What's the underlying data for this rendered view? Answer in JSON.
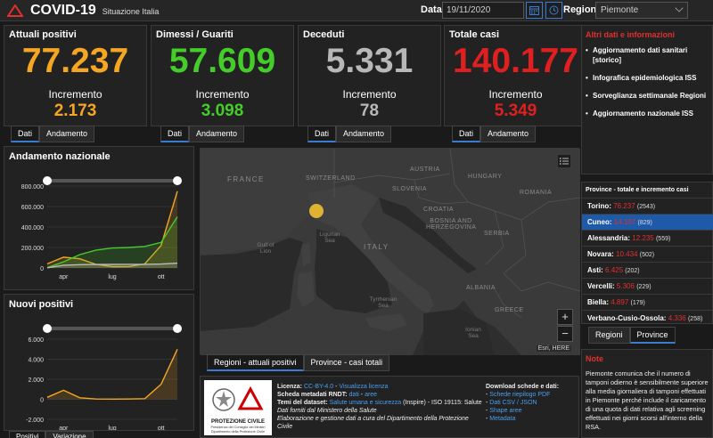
{
  "header": {
    "title": "COVID-19",
    "subtitle": "Situazione Italia",
    "date_label": "Data",
    "date_value": "19/11/2020",
    "region_label": "Regione",
    "region_value": "Piemonte"
  },
  "stats": [
    {
      "label": "Attuali positivi",
      "value": "77.237",
      "inc_label": "Incremento",
      "inc": "2.173",
      "color": "#f5a623"
    },
    {
      "label": "Dimessi / Guariti",
      "value": "57.609",
      "inc_label": "Incremento",
      "inc": "3.098",
      "color": "#44cc2a"
    },
    {
      "label": "Deceduti",
      "value": "5.331",
      "inc_label": "Incremento",
      "inc": "78",
      "color": "#b8b8b8"
    },
    {
      "label": "Totale casi",
      "value": "140.177",
      "inc_label": "Incremento",
      "inc": "5.349",
      "color": "#e02020"
    }
  ],
  "stat_tabs": {
    "dati": "Dati",
    "andamento": "Andamento"
  },
  "info": {
    "header": "Altri dati e informazioni",
    "items": [
      "Aggiornamento dati sanitari [storico]",
      "Infografica epidemiologica ISS",
      "Sorveglianza settimanale Regioni",
      "Aggiornamento nazionale ISS"
    ]
  },
  "provinces": {
    "header": "Province - totale e incremento casi",
    "rows": [
      {
        "name": "Torino:",
        "value": "76.237",
        "inc": "(2543)"
      },
      {
        "name": "Cuneo:",
        "value": "14.107",
        "inc": "(829)"
      },
      {
        "name": "Alessandria:",
        "value": "12.235",
        "inc": "(559)"
      },
      {
        "name": "Novara:",
        "value": "10.434",
        "inc": "(502)"
      },
      {
        "name": "Asti:",
        "value": "6.425",
        "inc": "(202)"
      },
      {
        "name": "Vercelli:",
        "value": "5.306",
        "inc": "(229)"
      },
      {
        "name": "Biella:",
        "value": "4.897",
        "inc": "(179)"
      },
      {
        "name": "Verbano-Cusio-Ossola:",
        "value": "4.336",
        "inc": "(258)"
      }
    ],
    "tab_regioni": "Regioni",
    "tab_province": "Province"
  },
  "note": {
    "header": "Note",
    "text": "Piemonte comunica che il numero di tamponi odierno è sensibilmente superiore alla media giornaliera di tamponi effettuati in Piemonte perché include il caricamento di una quota di dati relativa agli screening effettuati nei giorni scorsi all'interno della RSA."
  },
  "map": {
    "labels": {
      "france": "FRANCE",
      "austria": "AUSTRIA",
      "hungary": "HUNGARY",
      "switzerland": "SWITZERLAND",
      "slovenia": "SLOVENIA",
      "croatia": "CROATIA",
      "romania": "ROMANIA",
      "bosnia": "BOSNIA AND HERZEGOVINA",
      "serbia": "SERBIA",
      "italy": "ITALY",
      "albania": "ALBANIA",
      "greece": "GREECE",
      "ligurian": "Ligurian Sea",
      "lion": "Gulf of Lion",
      "tyrrhenian": "Tyrrhenian Sea",
      "ionian": "Ionian Sea"
    },
    "attribution": "Esri, HERE",
    "zoom_in": "+",
    "zoom_out": "−",
    "tab_regioni": "Regioni - attuali positivi",
    "tab_province": "Province - casi totali"
  },
  "footer": {
    "licenza_label": "Licenza:",
    "licenza_value": "CC-BY-4.0",
    "licenza_link": "Visualizza licenza",
    "rndt_label": "Scheda metadati RNDT:",
    "rndt_dati": "dati",
    "rndt_aree": "aree",
    "temi_label": "Temi del dataset:",
    "temi_value": "Salute umana e sicurezza",
    "temi_extra": "(Inspire) - ISO 19115: Salute",
    "fonte": "Dati forniti dal Ministero della Salute",
    "elab": "Elaborazione e gestione dati a cura del Dipartimento della Protezione Civile",
    "download_label": "Download schede e dati:",
    "downloads": [
      "Schede riepilogo PDF",
      "Dati CSV / JSON",
      "Shape aree",
      "Metadata"
    ],
    "pc_name": "PROTEZIONE CIVILE",
    "pc_sub": "Presidenza del Consiglio dei Ministri Dipartimento della Protezione Civile"
  },
  "charts": {
    "andamento": {
      "title": "Andamento nazionale",
      "y_ticks": [
        "800.000",
        "600.000",
        "400.000",
        "200.000",
        "0"
      ],
      "x_ticks": [
        "apr",
        "lug",
        "ott"
      ]
    },
    "nuovi": {
      "title": "Nuovi positivi",
      "y_ticks": [
        "6.000",
        "4.000",
        "2.000",
        "0",
        "-2.000"
      ],
      "x_ticks": [
        "apr",
        "lug",
        "ott"
      ]
    },
    "tab_positivi": "Positivi",
    "tab_variazione": "Variazione"
  },
  "chart_data": [
    {
      "type": "line",
      "title": "Andamento nazionale",
      "ylim": [
        0,
        800000
      ],
      "x": [
        "mar",
        "apr",
        "mag",
        "giu",
        "lug",
        "ago",
        "set",
        "ott",
        "nov"
      ],
      "series": [
        {
          "values": [
            40000,
            105000,
            90000,
            35000,
            13000,
            14000,
            40000,
            220000,
            750000
          ]
        },
        {
          "values": [
            3000,
            60000,
            130000,
            175000,
            195000,
            200000,
            210000,
            250000,
            500000
          ]
        },
        {
          "values": [
            2000,
            27000,
            32000,
            34000,
            35000,
            35500,
            36000,
            38000,
            47000
          ]
        }
      ]
    },
    {
      "type": "line",
      "title": "Nuovi positivi",
      "ylim": [
        -2000,
        6000
      ],
      "x": [
        "mar",
        "apr",
        "mag",
        "giu",
        "lug",
        "ago",
        "set",
        "ott",
        "nov"
      ],
      "series": [
        {
          "values": [
            200,
            900,
            150,
            30,
            20,
            30,
            60,
            1500,
            5000
          ]
        }
      ]
    }
  ]
}
